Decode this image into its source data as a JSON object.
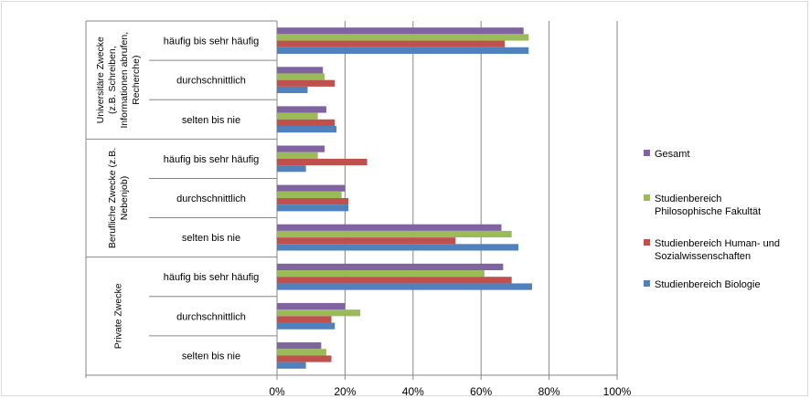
{
  "chart_data": {
    "type": "bar",
    "orientation": "horizontal",
    "groups": [
      {
        "label": [
          "Universitäre Zwecke",
          "(z.B. Schreiben,",
          "Informationen abrufen,",
          "Recherche)"
        ],
        "categories": [
          "häufig bis sehr häufig",
          "durchschnittlich",
          "selten bis nie"
        ]
      },
      {
        "label": [
          "Berufliche Zwecke (z.B.",
          "Nebenjob)"
        ],
        "categories": [
          "häufig bis sehr häufig",
          "durchschnittlich",
          "selten bis nie"
        ]
      },
      {
        "label": [
          "Private Zwecke"
        ],
        "categories": [
          "häufig bis sehr häufig",
          "durchschnittlich",
          "selten bis nie"
        ]
      }
    ],
    "series": [
      {
        "name": "Gesamt",
        "color": "#8064A2",
        "values": [
          72.5,
          13.5,
          14.5,
          14,
          20,
          66,
          66.5,
          20,
          13
        ]
      },
      {
        "name": "Studienbereich Philosophische Fakultät",
        "color": "#9BBB59",
        "values": [
          74,
          14,
          12,
          12,
          19,
          69,
          61,
          24.5,
          14.5
        ]
      },
      {
        "name": "Studienbereich Human- und Sozialwissenschaften",
        "color": "#C0504D",
        "values": [
          67,
          17,
          17,
          26.5,
          21,
          52.5,
          69,
          16,
          16
        ]
      },
      {
        "name": "Studienbereich Biologie",
        "color": "#4F81BD",
        "values": [
          74,
          9,
          17.5,
          8.5,
          21,
          71,
          75,
          17,
          8.5
        ]
      }
    ],
    "xlim": [
      0,
      100
    ],
    "xticks": [
      "0%",
      "20%",
      "40%",
      "60%",
      "80%",
      "100%"
    ],
    "grid": true,
    "legend_position": "right"
  }
}
